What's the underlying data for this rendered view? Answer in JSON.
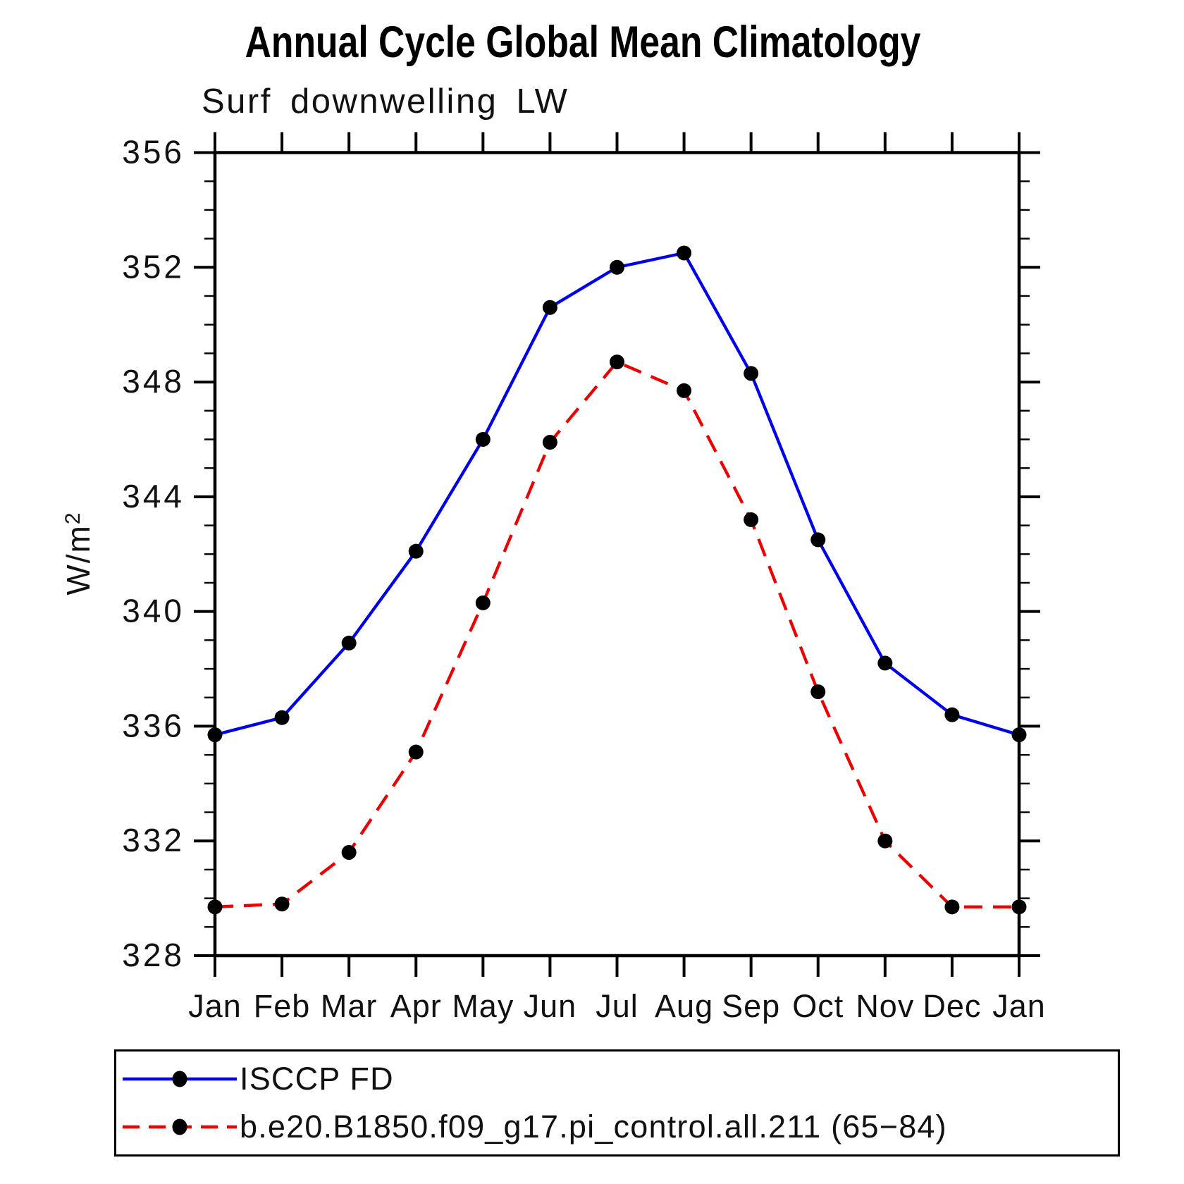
{
  "title": "Annual Cycle Global Mean Climatology",
  "subtitle": "Surf downwelling LW",
  "y_axis": {
    "label_base": "W/m",
    "label_exponent": "2"
  },
  "legend": {
    "items": [
      {
        "label": "ISCCP FD",
        "color": "#0000ee",
        "style": "solid"
      },
      {
        "label": "b.e20.B1850.f09_g17.pi_control.all.211 (65−84)",
        "color": "#ee0000",
        "style": "dashed"
      }
    ]
  },
  "chart_data": {
    "type": "line",
    "title": "Annual Cycle Global Mean Climatology",
    "subtitle": "Surf downwelling LW",
    "ylabel": "W/m²",
    "xlabel": "",
    "categories": [
      "Jan",
      "Feb",
      "Mar",
      "Apr",
      "May",
      "Jun",
      "Jul",
      "Aug",
      "Sep",
      "Oct",
      "Nov",
      "Dec",
      "Jan"
    ],
    "series": [
      {
        "name": "ISCCP FD",
        "color": "#0000ee",
        "line_style": "solid",
        "marker": "filled-circle",
        "values": [
          335.7,
          336.3,
          338.9,
          342.1,
          346.0,
          350.6,
          352.0,
          352.5,
          348.3,
          342.5,
          338.2,
          336.4,
          335.7
        ]
      },
      {
        "name": "b.e20.B1850.f09_g17.pi_control.all.211 (65−84)",
        "color": "#ee0000",
        "line_style": "dashed",
        "marker": "filled-circle",
        "values": [
          329.7,
          329.8,
          331.6,
          335.1,
          340.3,
          345.9,
          348.7,
          347.7,
          343.2,
          337.2,
          332.0,
          329.7,
          329.7
        ]
      }
    ],
    "marker_color": "#000000",
    "ylim": [
      328,
      356
    ],
    "y_major_ticks": [
      328,
      332,
      336,
      340,
      344,
      348,
      352,
      356
    ],
    "y_minor_step": 1,
    "grid": false,
    "ticks": "all-four-sides-outward",
    "legend_position": "bottom"
  }
}
